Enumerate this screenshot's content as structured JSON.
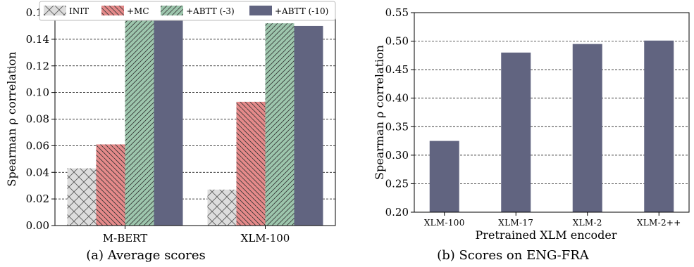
{
  "chart_data": [
    {
      "type": "bar",
      "caption": "(a) Average scores",
      "ylabel": "Spearman ρ correlation",
      "xlabel": "",
      "ylim": [
        0,
        0.16
      ],
      "yticks": [
        "0.00",
        "0.02",
        "0.04",
        "0.06",
        "0.08",
        "0.10",
        "0.12",
        "0.14",
        "0.16"
      ],
      "categories": [
        "M-BERT",
        "XLM-100"
      ],
      "legend_position": "top",
      "grid": "horizontal-dashed",
      "series": [
        {
          "name": "INIT",
          "values": [
            0.043,
            0.027
          ],
          "color": "#dddddd",
          "hatch": "cross"
        },
        {
          "name": "+MC",
          "values": [
            0.061,
            0.093
          ],
          "color": "#e58a8a",
          "hatch": "backslash"
        },
        {
          "name": "+ABTT (-3)",
          "values": [
            0.16,
            0.152
          ],
          "color": "#9dc6ad",
          "hatch": "slash"
        },
        {
          "name": "+ABTT (-10)",
          "values": [
            0.16,
            0.15
          ],
          "color": "#616480",
          "hatch": "none"
        }
      ]
    },
    {
      "type": "bar",
      "caption": "(b) Scores on ENG-FRA",
      "ylabel": "Spearman ρ correlation",
      "xlabel": "Pretrained XLM encoder",
      "ylim": [
        0.2,
        0.55
      ],
      "yticks": [
        "0.20",
        "0.25",
        "0.30",
        "0.35",
        "0.40",
        "0.45",
        "0.50",
        "0.55"
      ],
      "categories": [
        "XLM-100",
        "XLM-17",
        "XLM-2",
        "XLM-2++"
      ],
      "grid": "horizontal-dashed",
      "series": [
        {
          "values": [
            0.325,
            0.48,
            0.495,
            0.501
          ],
          "color": "#616480"
        }
      ]
    }
  ]
}
